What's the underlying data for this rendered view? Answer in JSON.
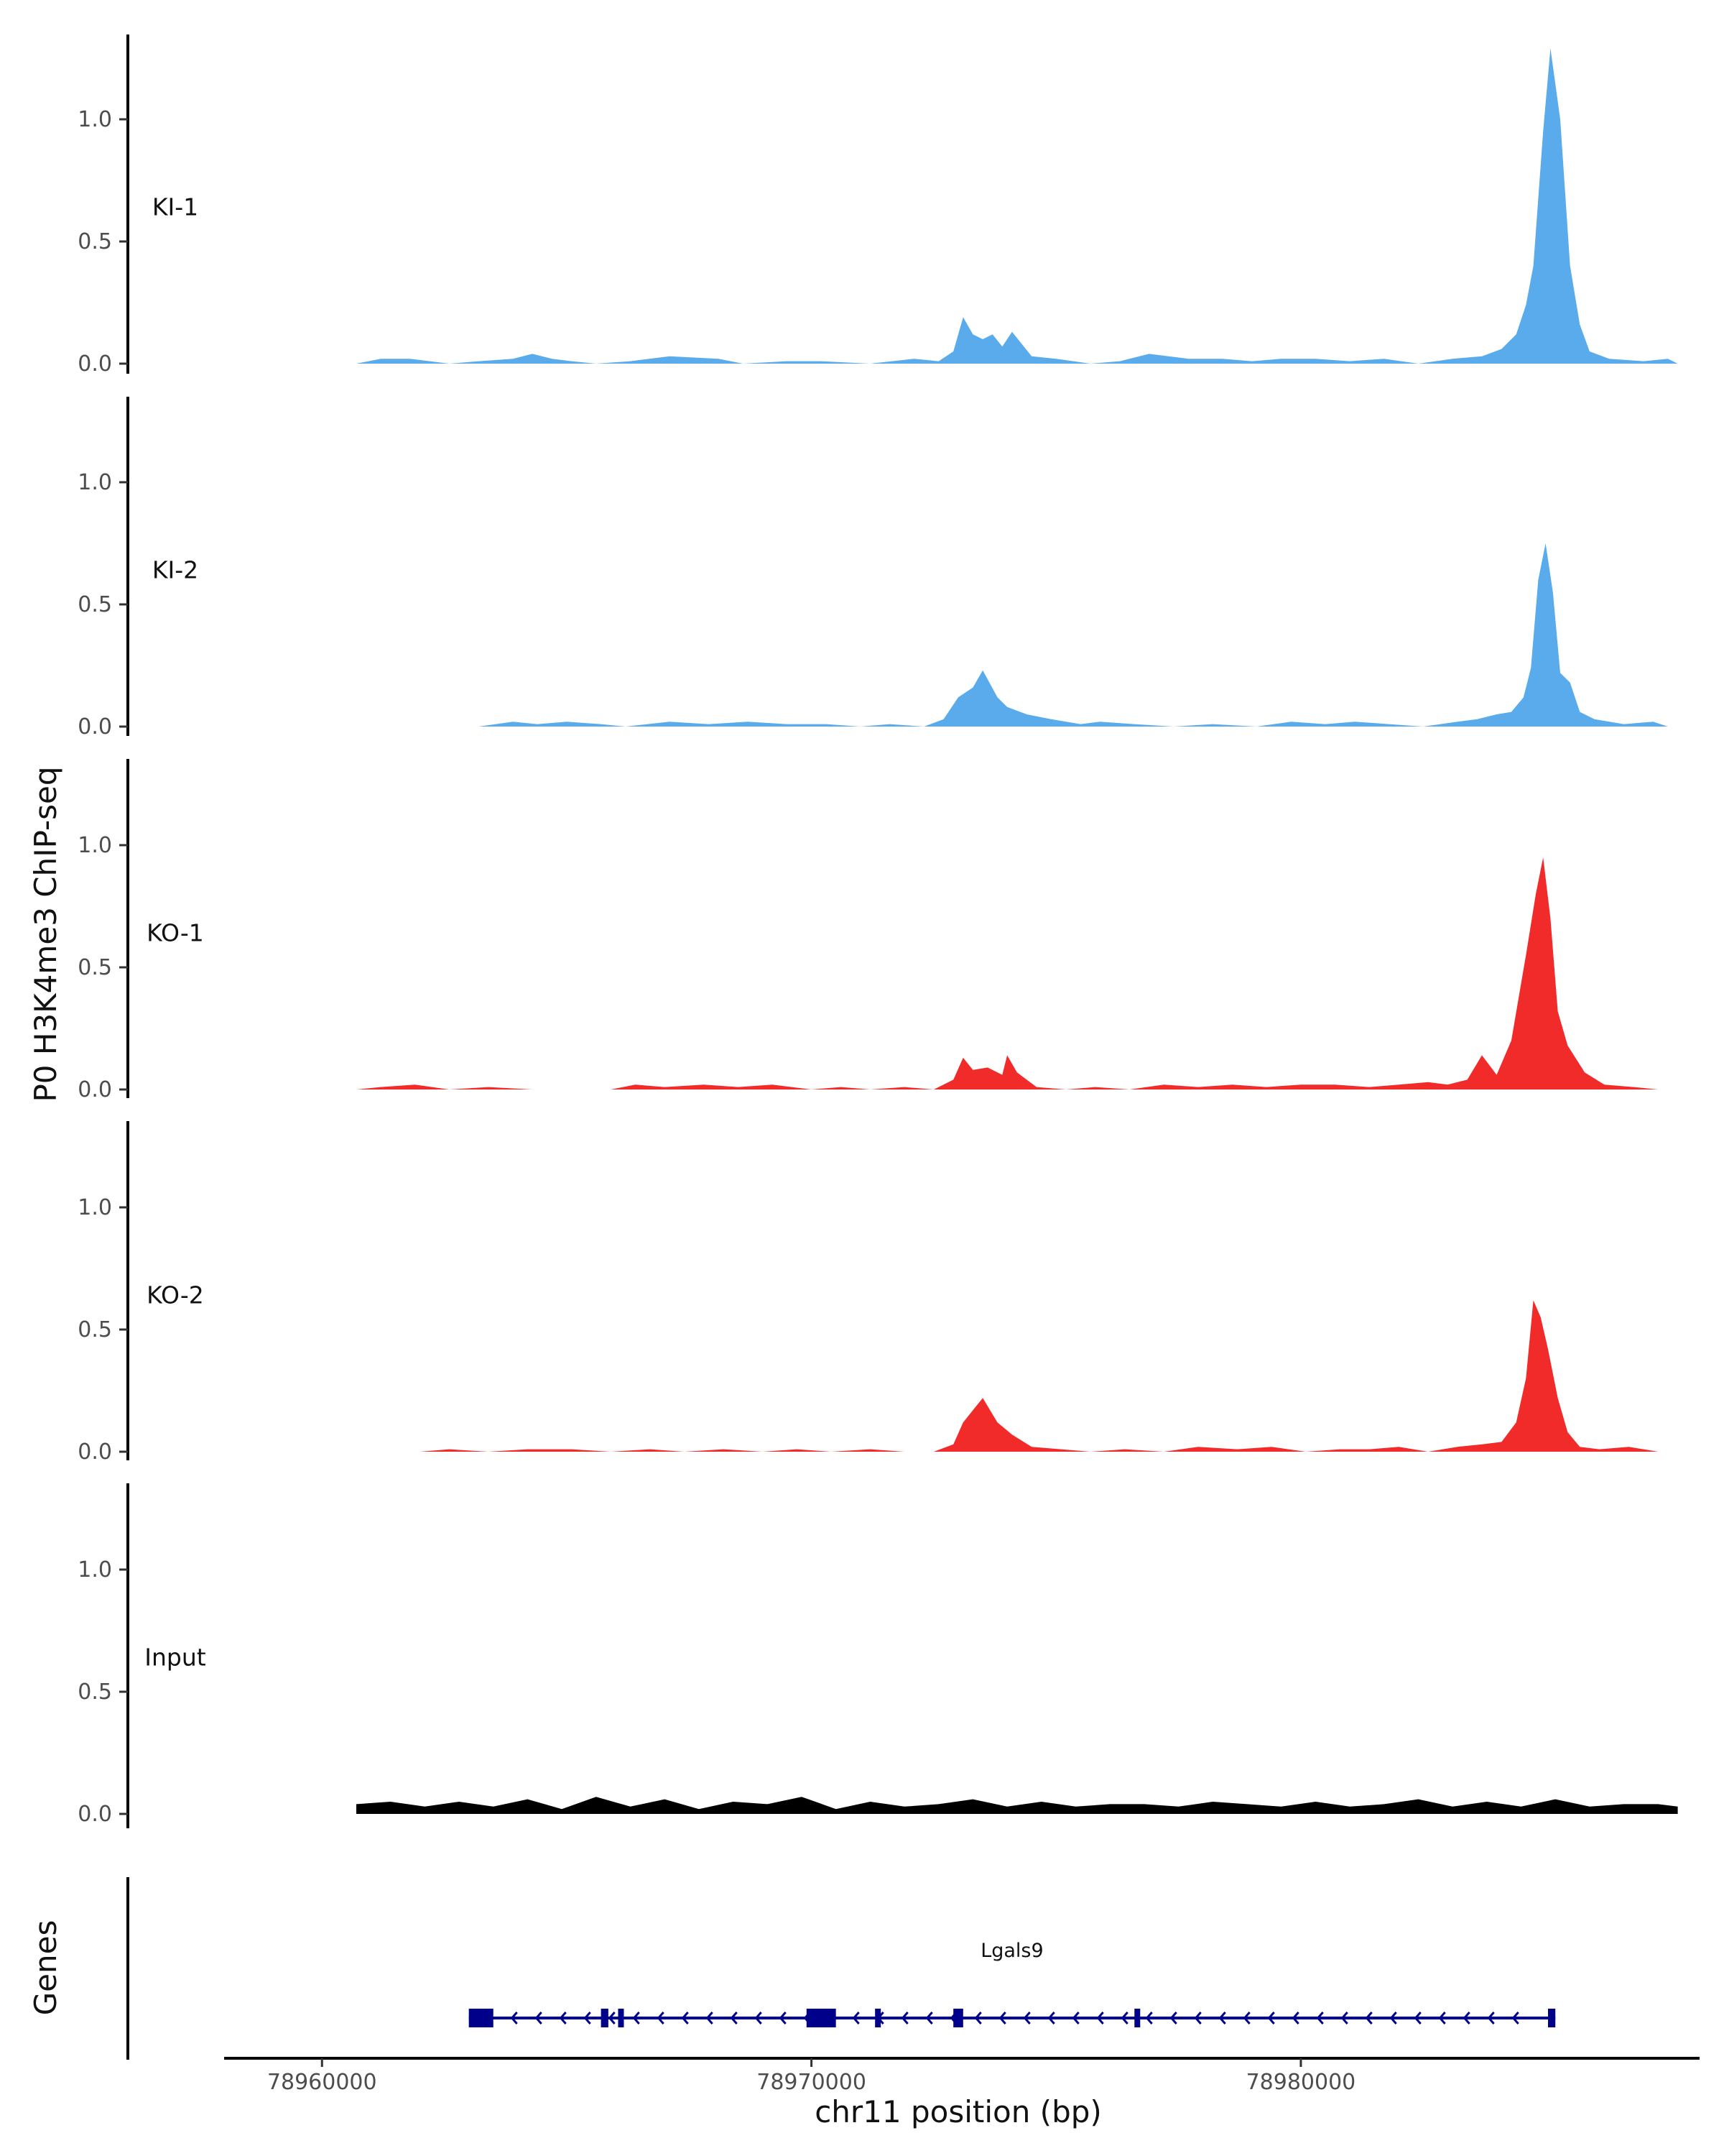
{
  "chart_data": {
    "type": "area",
    "title": "",
    "ylabel": "P0 H3K4me3 ChIP-seq",
    "xlabel": "chr11 position (bp)",
    "xlim": [
      78958000,
      78988000
    ],
    "ylim": [
      0,
      1.35
    ],
    "xticks": [
      78960000,
      78970000,
      78980000
    ],
    "xtick_labels": [
      "78960000",
      "78970000",
      "78980000"
    ],
    "yticks": [
      0.0,
      0.5,
      1.0
    ],
    "ytick_labels": [
      "0.0",
      "0.5",
      "1.0"
    ],
    "colors": {
      "KI": "#5aabec",
      "KO": "#f12a2a",
      "Input": "#000000",
      "gene": "#00008b"
    },
    "tracks": [
      {
        "name": "KI-1",
        "color": "#5aabec",
        "x": [
          78960700,
          78961200,
          78961800,
          78962600,
          78963200,
          78963900,
          78964300,
          78964700,
          78965100,
          78965600,
          78966300,
          78967100,
          78968100,
          78968600,
          78969500,
          78970200,
          78971200,
          78972100,
          78972600,
          78972900,
          78973100,
          78973300,
          78973500,
          78973700,
          78973900,
          78974100,
          78974500,
          78975000,
          78975700,
          78976300,
          78976900,
          78977700,
          78978400,
          78979000,
          78979600,
          78980300,
          78981000,
          78981700,
          78982400,
          78983100,
          78983700,
          78984100,
          78984400,
          78984600,
          78984750,
          78984950,
          78985100,
          78985300,
          78985500,
          78985700,
          78985900,
          78986300,
          78987000,
          78987500,
          78987700
        ],
        "y": [
          0.0,
          0.02,
          0.02,
          0.0,
          0.01,
          0.02,
          0.04,
          0.02,
          0.01,
          0.0,
          0.01,
          0.03,
          0.02,
          0.0,
          0.01,
          0.01,
          0.0,
          0.02,
          0.01,
          0.05,
          0.19,
          0.12,
          0.1,
          0.12,
          0.07,
          0.13,
          0.03,
          0.02,
          0.0,
          0.01,
          0.04,
          0.02,
          0.02,
          0.01,
          0.02,
          0.02,
          0.01,
          0.02,
          0.0,
          0.02,
          0.03,
          0.06,
          0.12,
          0.24,
          0.4,
          0.95,
          1.29,
          1.0,
          0.4,
          0.16,
          0.05,
          0.02,
          0.01,
          0.02,
          0.0
        ]
      },
      {
        "name": "KI-2",
        "color": "#5aabec",
        "x": [
          78960700,
          78961400,
          78962300,
          78963200,
          78963900,
          78964400,
          78965000,
          78965700,
          78966200,
          78967100,
          78967900,
          78968700,
          78969500,
          78970300,
          78971000,
          78971600,
          78972300,
          78972700,
          78973000,
          78973300,
          78973500,
          78973800,
          78974000,
          78974400,
          78974900,
          78975500,
          78975900,
          78976600,
          78977400,
          78978200,
          78979100,
          78979800,
          78980500,
          78981100,
          78981800,
          78982500,
          78983200,
          78983600,
          78984000,
          78984300,
          78984550,
          78984700,
          78984850,
          78985000,
          78985150,
          78985300,
          78985500,
          78985700,
          78986000,
          78986600,
          78987200,
          78987500
        ],
        "y": [
          0.0,
          0.0,
          0.0,
          0.0,
          0.02,
          0.01,
          0.02,
          0.01,
          0.0,
          0.02,
          0.01,
          0.02,
          0.01,
          0.01,
          0.0,
          0.01,
          0.0,
          0.03,
          0.12,
          0.16,
          0.23,
          0.12,
          0.08,
          0.05,
          0.03,
          0.01,
          0.02,
          0.01,
          0.0,
          0.01,
          0.0,
          0.02,
          0.01,
          0.02,
          0.01,
          0.0,
          0.02,
          0.03,
          0.05,
          0.06,
          0.12,
          0.24,
          0.6,
          0.75,
          0.55,
          0.22,
          0.18,
          0.06,
          0.03,
          0.01,
          0.02,
          0.0
        ]
      },
      {
        "name": "KO-1",
        "color": "#f12a2a",
        "x": [
          78960700,
          78961200,
          78961900,
          78962600,
          78963400,
          78964300,
          78965100,
          78965900,
          78966400,
          78967000,
          78967800,
          78968500,
          78969200,
          78970000,
          78970600,
          78971200,
          78971900,
          78972500,
          78972900,
          78973100,
          78973300,
          78973600,
          78973900,
          78974000,
          78974200,
          78974600,
          78975200,
          78975800,
          78976500,
          78977200,
          78977900,
          78978600,
          78979300,
          78980000,
          78980700,
          78981400,
          78982000,
          78982600,
          78983000,
          78983400,
          78983700,
          78984000,
          78984300,
          78984600,
          78984800,
          78984950,
          78985100,
          78985250,
          78985450,
          78985800,
          78986200,
          78986800,
          78987300
        ],
        "y": [
          0.0,
          0.01,
          0.02,
          0.0,
          0.01,
          0.0,
          0.0,
          0.0,
          0.02,
          0.01,
          0.02,
          0.01,
          0.02,
          0.0,
          0.01,
          0.0,
          0.01,
          0.0,
          0.04,
          0.13,
          0.08,
          0.09,
          0.06,
          0.14,
          0.07,
          0.01,
          0.0,
          0.01,
          0.0,
          0.02,
          0.01,
          0.02,
          0.01,
          0.02,
          0.02,
          0.01,
          0.02,
          0.03,
          0.02,
          0.04,
          0.14,
          0.06,
          0.2,
          0.55,
          0.8,
          0.95,
          0.7,
          0.32,
          0.18,
          0.07,
          0.02,
          0.01,
          0.0
        ]
      },
      {
        "name": "KO-2",
        "color": "#f12a2a",
        "x": [
          78962000,
          78962600,
          78963400,
          78964200,
          78965100,
          78965900,
          78966700,
          78967400,
          78968200,
          78969000,
          78969700,
          78970400,
          78971200,
          78971900,
          78972500,
          78972900,
          78973100,
          78973300,
          78973500,
          78973800,
          78974100,
          78974500,
          78975100,
          78975700,
          78976400,
          78977200,
          78977900,
          78978700,
          78979400,
          78980100,
          78980800,
          78981400,
          78982000,
          78982600,
          78983200,
          78983700,
          78984100,
          78984400,
          78984600,
          78984750,
          78984900,
          78985050,
          78985250,
          78985450,
          78985700,
          78986100,
          78986700,
          78987300
        ],
        "y": [
          0.0,
          0.01,
          0.0,
          0.01,
          0.01,
          0.0,
          0.01,
          0.0,
          0.01,
          0.0,
          0.01,
          0.0,
          0.01,
          0.0,
          0.0,
          0.03,
          0.12,
          0.17,
          0.22,
          0.12,
          0.07,
          0.02,
          0.01,
          0.0,
          0.01,
          0.0,
          0.02,
          0.01,
          0.02,
          0.0,
          0.01,
          0.01,
          0.02,
          0.0,
          0.02,
          0.03,
          0.04,
          0.12,
          0.3,
          0.62,
          0.55,
          0.42,
          0.22,
          0.08,
          0.02,
          0.01,
          0.02,
          0.0
        ]
      },
      {
        "name": "Input",
        "color": "#000000",
        "x": [
          78960700,
          78961400,
          78962100,
          78962800,
          78963500,
          78964200,
          78964900,
          78965600,
          78966300,
          78967000,
          78967700,
          78968400,
          78969100,
          78969800,
          78970500,
          78971200,
          78971900,
          78972600,
          78973300,
          78974000,
          78974700,
          78975400,
          78976100,
          78976800,
          78977500,
          78978200,
          78978900,
          78979600,
          78980300,
          78981000,
          78981700,
          78982400,
          78983100,
          78983800,
          78984500,
          78985200,
          78985900,
          78986600,
          78987300,
          78987700
        ],
        "y": [
          0.04,
          0.05,
          0.03,
          0.05,
          0.03,
          0.06,
          0.02,
          0.07,
          0.03,
          0.06,
          0.02,
          0.05,
          0.04,
          0.07,
          0.02,
          0.05,
          0.03,
          0.04,
          0.06,
          0.03,
          0.05,
          0.03,
          0.04,
          0.04,
          0.03,
          0.05,
          0.04,
          0.03,
          0.05,
          0.03,
          0.04,
          0.06,
          0.03,
          0.05,
          0.03,
          0.06,
          0.03,
          0.04,
          0.04,
          0.03
        ]
      }
    ],
    "genes": [
      {
        "name": "Lgals9",
        "start": 78963000,
        "end": 78985200,
        "strand": "-",
        "exons": [
          [
            78963000,
            78963500
          ],
          [
            78965700,
            78965850
          ],
          [
            78966050,
            78966150
          ],
          [
            78969900,
            78970500
          ],
          [
            78971300,
            78971400
          ],
          [
            78972900,
            78973100
          ],
          [
            78976600,
            78976700
          ],
          [
            78985050,
            78985200
          ]
        ]
      }
    ],
    "genes_track_label": "Genes"
  }
}
